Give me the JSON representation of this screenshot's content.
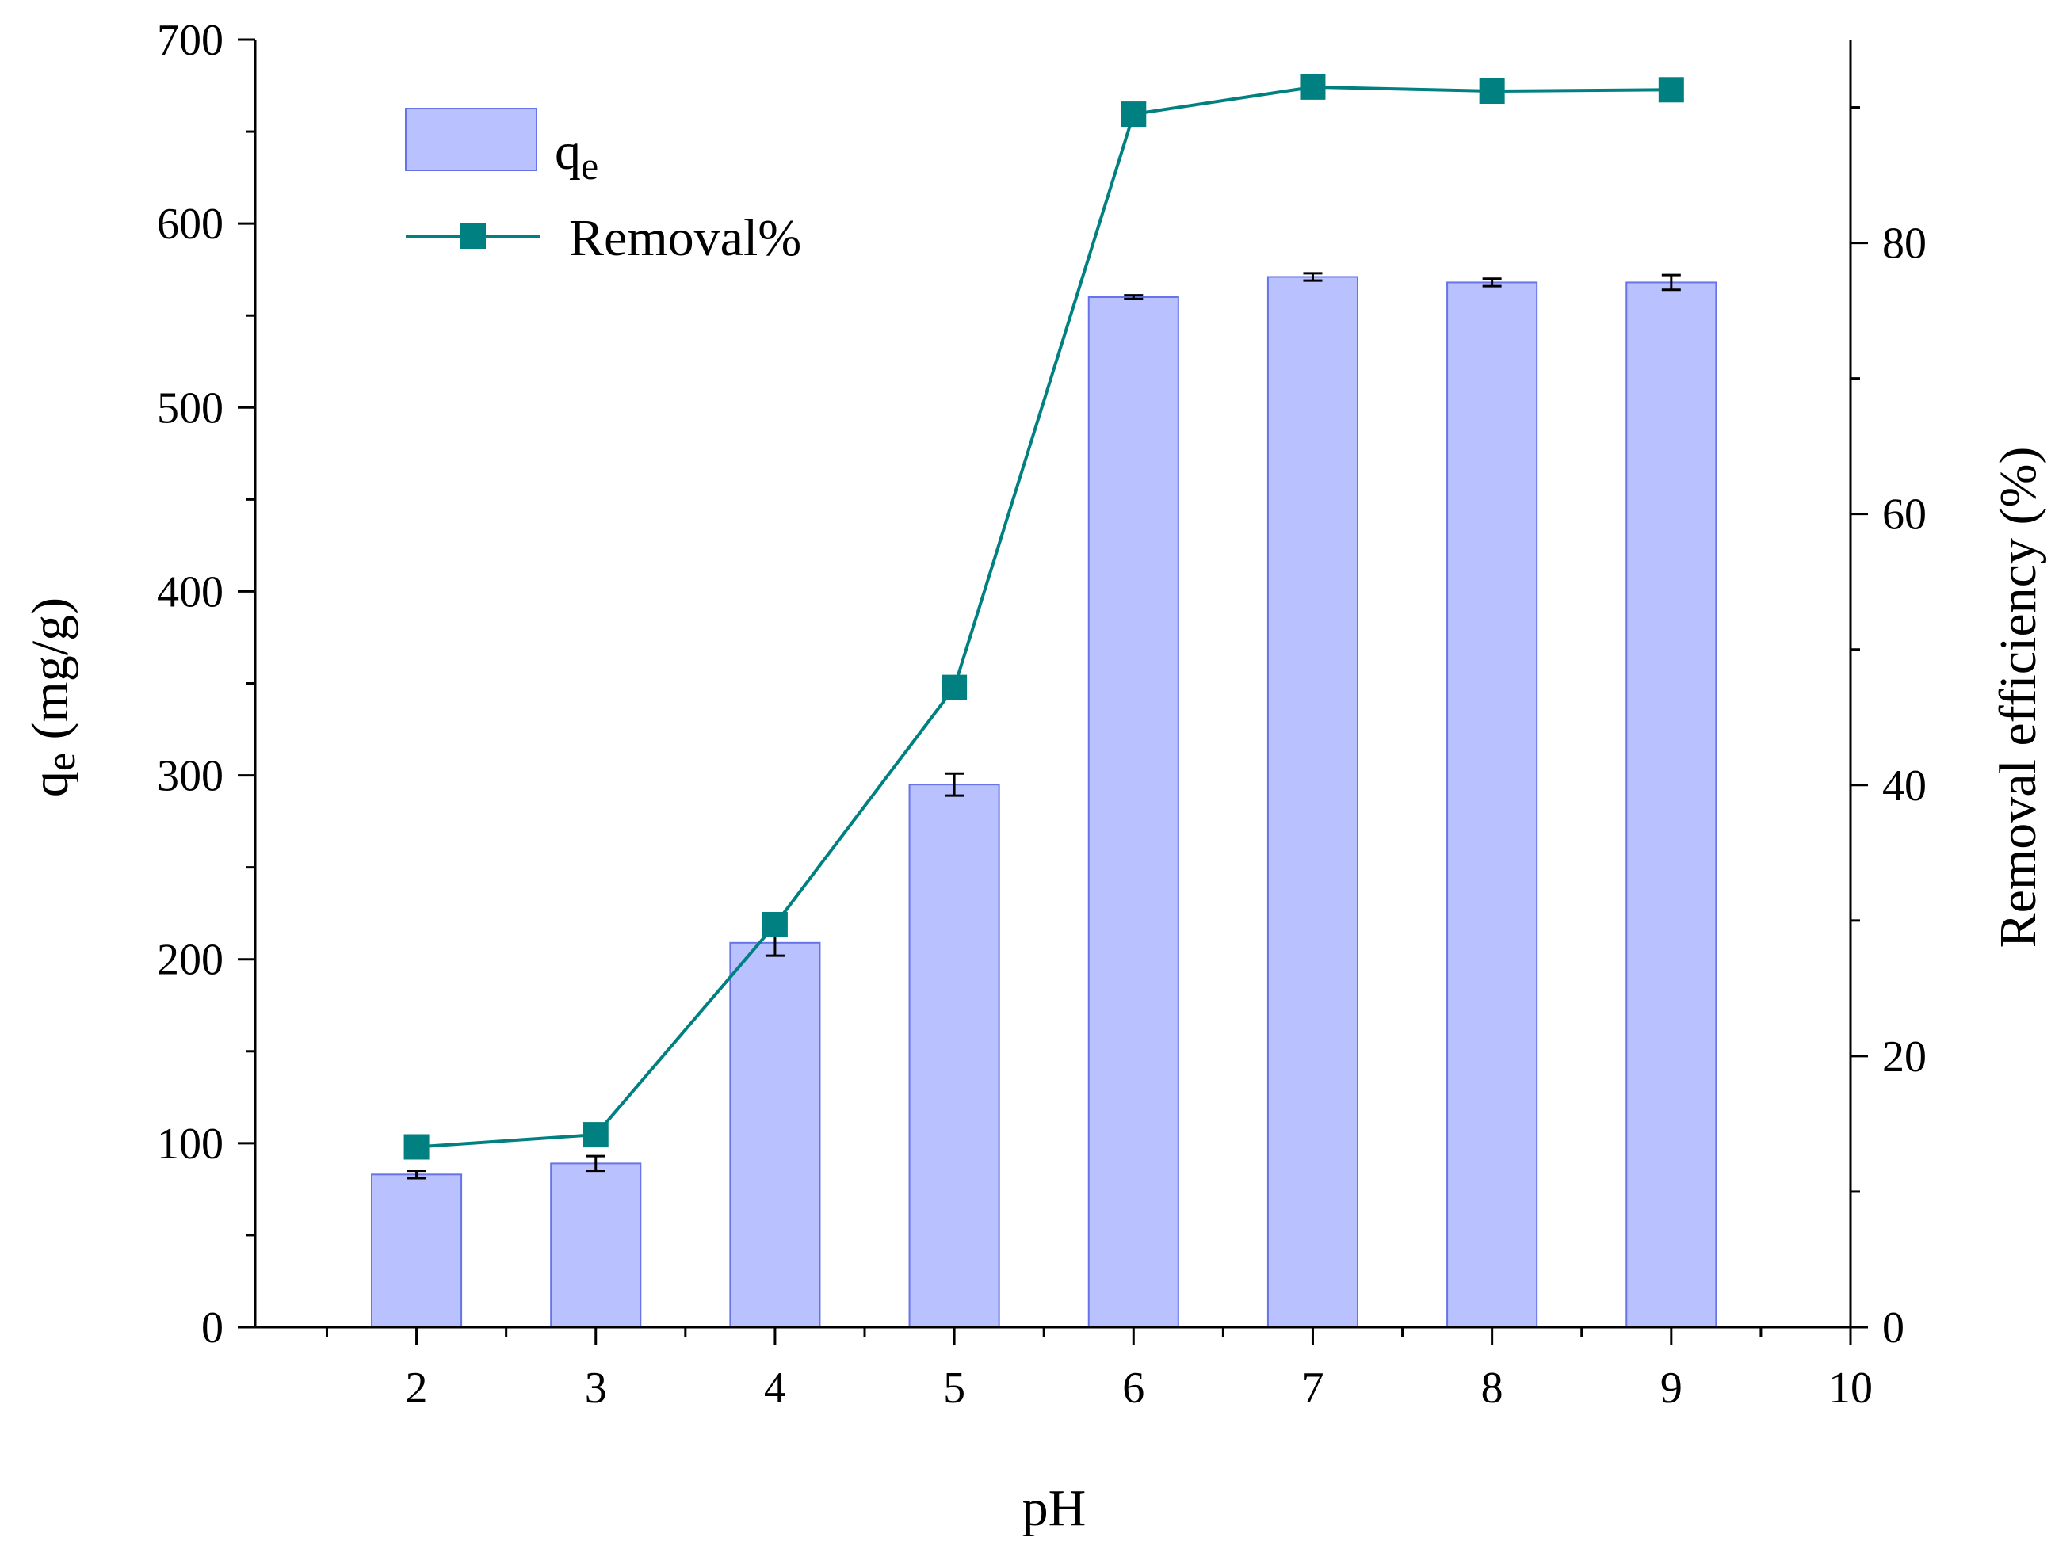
{
  "chart_data": {
    "type": "bar+line",
    "x": [
      2,
      3,
      4,
      5,
      6,
      7,
      8,
      9
    ],
    "xlabel": "pH",
    "xlim": [
      1.1,
      10
    ],
    "xticks": [
      2,
      3,
      4,
      5,
      6,
      7,
      8,
      9,
      10
    ],
    "y_left": {
      "label_main": "q",
      "label_sub": "e",
      "label_rest": " (mg/g)",
      "lim": [
        0,
        700
      ],
      "ticks": [
        0,
        100,
        200,
        300,
        400,
        500,
        600,
        700
      ]
    },
    "y_right": {
      "label": "Removal efficiency (%)",
      "lim": [
        0,
        95
      ],
      "ticks": [
        0,
        20,
        40,
        60,
        80
      ]
    },
    "series": [
      {
        "name": "q",
        "name_sub": "e",
        "kind": "bar",
        "axis": "left",
        "values": [
          83,
          89,
          209,
          295,
          560,
          571,
          568,
          568
        ],
        "errors": [
          2,
          4,
          7,
          6,
          1,
          2,
          2,
          4
        ],
        "color": "#b9c2ff",
        "edge_color": "#6674e8"
      },
      {
        "name": "Removal%",
        "kind": "line",
        "axis": "right",
        "values": [
          13.3,
          14.2,
          29.7,
          47.2,
          89.5,
          91.5,
          91.2,
          91.3
        ],
        "color": "#008080"
      }
    ],
    "legend": "top-left",
    "grid": false
  }
}
